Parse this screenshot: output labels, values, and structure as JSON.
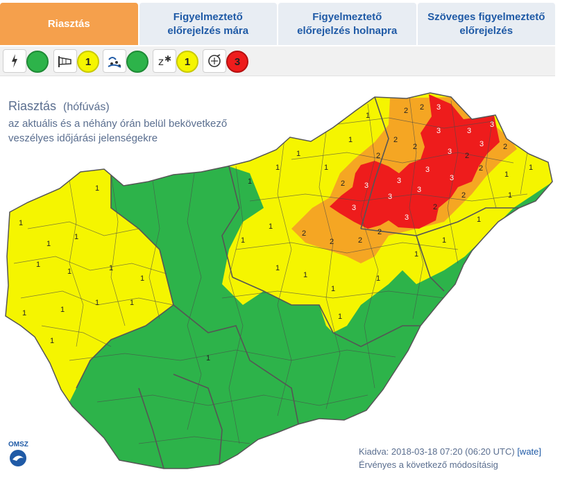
{
  "tabs": [
    {
      "label": "Riasztás"
    },
    {
      "label": "Figyelmeztető\nelőrejelzés mára"
    },
    {
      "label": "Figyelmeztető\nelőrejelzés holnapra"
    },
    {
      "label": "Szöveges figyelmeztető\nelőrejelzés"
    }
  ],
  "hazards": [
    {
      "icon": "lightning-icon",
      "level": ""
    },
    {
      "icon": "wind-icon",
      "level": "1"
    },
    {
      "icon": "rain-icon",
      "level": ""
    },
    {
      "icon": "snow-icon",
      "level": "1"
    },
    {
      "icon": "snowdrift-icon",
      "level": "3"
    }
  ],
  "colors": {
    "level0": "#2db34a",
    "level1": "#f5f500",
    "level2": "#f5a623",
    "level3": "#ee1c1c",
    "tab_active": "#f5a04c",
    "text": "#5a6e8f"
  },
  "header": {
    "title": "Riasztás",
    "hazard": "(hófúvás)",
    "desc_line1": "az aktuális és a néhány órán belül bekövetkező",
    "desc_line2": "veszélyes időjárási jelenségekre"
  },
  "map": {
    "labels": [
      "1",
      "2",
      "3"
    ]
  },
  "footer": {
    "issued_prefix": "Kiadva: 2018-03-18 07:20 (06:20 UTC)",
    "issued_author": "[wate]",
    "valid": "Érvényes a következő módosításig"
  },
  "logo": {
    "text": "OMSZ"
  }
}
